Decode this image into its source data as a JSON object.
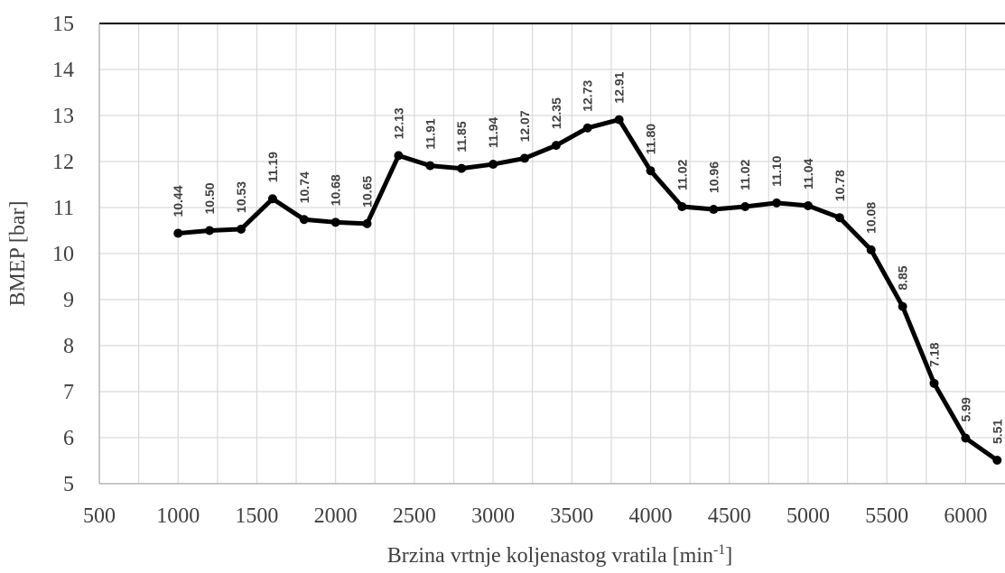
{
  "chart_data": {
    "type": "line",
    "xlabel_main": "Brzina vrtnje koljenastog vratila [min",
    "xlabel_sup": "-1",
    "xlabel_end": "]",
    "ylabel": "BMEP [bar]",
    "xlim": [
      500,
      6250
    ],
    "ylim": [
      5,
      15
    ],
    "x_ticks": [
      500,
      1000,
      1500,
      2000,
      2500,
      3000,
      3500,
      4000,
      4500,
      5000,
      5500,
      6000
    ],
    "y_ticks": [
      5,
      6,
      7,
      8,
      9,
      10,
      11,
      12,
      13,
      14,
      15
    ],
    "x_minor_step": 250,
    "grid": true,
    "line_color": "#000000",
    "grid_color": "#d9d9d9",
    "series": [
      {
        "x": [
          1000,
          1200,
          1400,
          1600,
          1800,
          2000,
          2200,
          2400,
          2600,
          2800,
          3000,
          3200,
          3400,
          3600,
          3800,
          4000,
          4200,
          4400,
          4600,
          4800,
          5000,
          5200,
          5400,
          5600,
          5800,
          6000,
          6200
        ],
        "y": [
          10.44,
          10.5,
          10.53,
          11.19,
          10.74,
          10.68,
          10.65,
          12.13,
          11.91,
          11.85,
          11.94,
          12.07,
          12.35,
          12.73,
          12.91,
          11.8,
          11.02,
          10.96,
          11.02,
          11.1,
          11.04,
          10.78,
          10.08,
          8.85,
          7.18,
          5.99,
          5.51
        ],
        "labels": [
          "10.44",
          "10.50",
          "10.53",
          "11.19",
          "10.74",
          "10.68",
          "10.65",
          "12.13",
          "11.91",
          "11.85",
          "11.94",
          "12.07",
          "12.35",
          "12.73",
          "12.91",
          "11.80",
          "11.02",
          "10.96",
          "11.02",
          "11.10",
          "11.04",
          "10.78",
          "10.08",
          "8.85",
          "7.18",
          "5.99",
          "5.51"
        ]
      }
    ]
  }
}
